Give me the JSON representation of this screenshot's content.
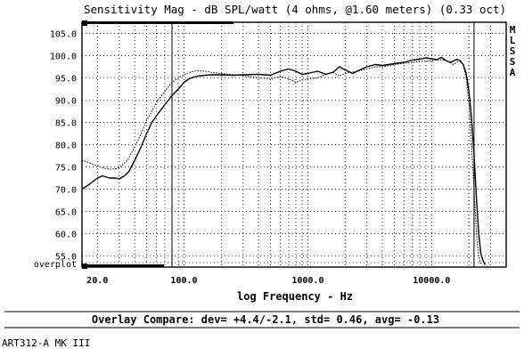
{
  "chart_data": {
    "type": "line",
    "title": "Sensitivity Mag - dB SPL/watt (4 ohms, @1.60 meters) (0.33 oct)",
    "xlabel": "log Frequency - Hz",
    "ylabel": "",
    "x_scale": "log",
    "xlim": [
      15,
      40000
    ],
    "ylim": [
      52.5,
      107.5
    ],
    "x_ticks": [
      {
        "value": 20,
        "label": "20.0"
      },
      {
        "value": 100,
        "label": "100.0"
      },
      {
        "value": 1000,
        "label": "1000.0"
      },
      {
        "value": 10000,
        "label": "10000.0"
      }
    ],
    "y_ticks": [
      {
        "value": 105,
        "label": "105.0"
      },
      {
        "value": 100,
        "label": "100.0"
      },
      {
        "value": 95,
        "label": "95.0"
      },
      {
        "value": 90,
        "label": "90.0"
      },
      {
        "value": 85,
        "label": "85.0"
      },
      {
        "value": 80,
        "label": "80.0"
      },
      {
        "value": 75,
        "label": "75.0"
      },
      {
        "value": 70,
        "label": "70.0"
      },
      {
        "value": 65,
        "label": "65.0"
      },
      {
        "value": 60,
        "label": "60.0"
      },
      {
        "value": 55,
        "label": "55.0"
      }
    ],
    "bottom_row_label": "overplot",
    "side_labels": [
      "M",
      "L",
      "S",
      "S",
      "A"
    ],
    "markers": [
      80,
      22000
    ],
    "grid": true,
    "series": [
      {
        "style": "solid",
        "x": [
          15,
          17,
          20,
          22,
          25,
          28,
          30,
          33,
          36,
          40,
          45,
          50,
          55,
          60,
          70,
          80,
          90,
          100,
          110,
          120,
          130,
          150,
          170,
          200,
          250,
          300,
          400,
          500,
          600,
          700,
          800,
          900,
          1000,
          1200,
          1400,
          1600,
          1800,
          2000,
          2300,
          2500,
          3000,
          3500,
          4000,
          5000,
          6000,
          7000,
          8000,
          9000,
          10000,
          11000,
          12000,
          13000,
          14000,
          15000,
          16000,
          17000,
          18000,
          19000,
          20000,
          21000,
          22000,
          23000,
          24000,
          25000,
          26000,
          27000
        ],
        "y": [
          70.0,
          71.0,
          72.5,
          73.0,
          72.5,
          72.5,
          72.3,
          73.0,
          74.0,
          76.5,
          79.5,
          82.5,
          85.0,
          86.5,
          89.0,
          91.0,
          92.5,
          94.0,
          94.8,
          95.2,
          95.4,
          95.6,
          95.7,
          95.7,
          95.6,
          95.7,
          95.8,
          95.6,
          96.5,
          97.0,
          96.5,
          95.8,
          96.0,
          96.5,
          95.8,
          96.3,
          97.5,
          96.8,
          96.0,
          96.5,
          97.5,
          98.0,
          97.8,
          98.2,
          98.5,
          99.0,
          99.2,
          99.5,
          99.3,
          99.1,
          99.6,
          98.9,
          98.5,
          98.8,
          99.2,
          98.8,
          98.0,
          96.0,
          92.0,
          86.0,
          78.0,
          68.0,
          60.0,
          55.5,
          54.0,
          53.0
        ]
      },
      {
        "style": "dotted",
        "x": [
          15,
          17,
          20,
          22,
          25,
          28,
          30,
          35,
          40,
          45,
          50,
          55,
          60,
          70,
          80,
          90,
          100,
          110,
          120,
          130,
          150,
          170,
          200,
          250,
          300,
          400,
          500,
          600,
          700,
          800,
          900,
          1000,
          1200,
          1400,
          1600,
          1800,
          2000,
          2500,
          3000,
          3500,
          4000,
          5000,
          6000,
          7000,
          8000,
          9000,
          10000,
          11000,
          12000,
          13000,
          14000,
          15000,
          16000,
          17000,
          18000,
          19000,
          20000,
          21000,
          22000,
          23000,
          24000,
          25000
        ],
        "y": [
          76.5,
          76.0,
          75.2,
          74.8,
          74.5,
          74.6,
          74.8,
          76.5,
          79.5,
          82.5,
          85.5,
          87.5,
          89.5,
          92.0,
          94.0,
          95.0,
          95.7,
          96.2,
          96.5,
          96.6,
          96.5,
          96.2,
          96.0,
          95.7,
          95.5,
          95.0,
          94.8,
          95.3,
          94.8,
          94.0,
          94.5,
          94.8,
          95.0,
          95.8,
          96.2,
          95.5,
          96.0,
          96.5,
          97.0,
          97.5,
          97.5,
          98.0,
          98.3,
          98.5,
          98.7,
          98.8,
          98.9,
          99.0,
          99.1,
          99.0,
          98.5,
          98.0,
          98.5,
          99.0,
          98.0,
          95.0,
          89.0,
          80.0,
          70.0,
          60.0,
          55.0,
          53.0
        ]
      }
    ]
  },
  "footer": {
    "compare_text": "Overlay Compare: dev= +4.4/-2.1, std= 0.46, avg= -0.13",
    "model_label": "ART312-A MK III"
  }
}
